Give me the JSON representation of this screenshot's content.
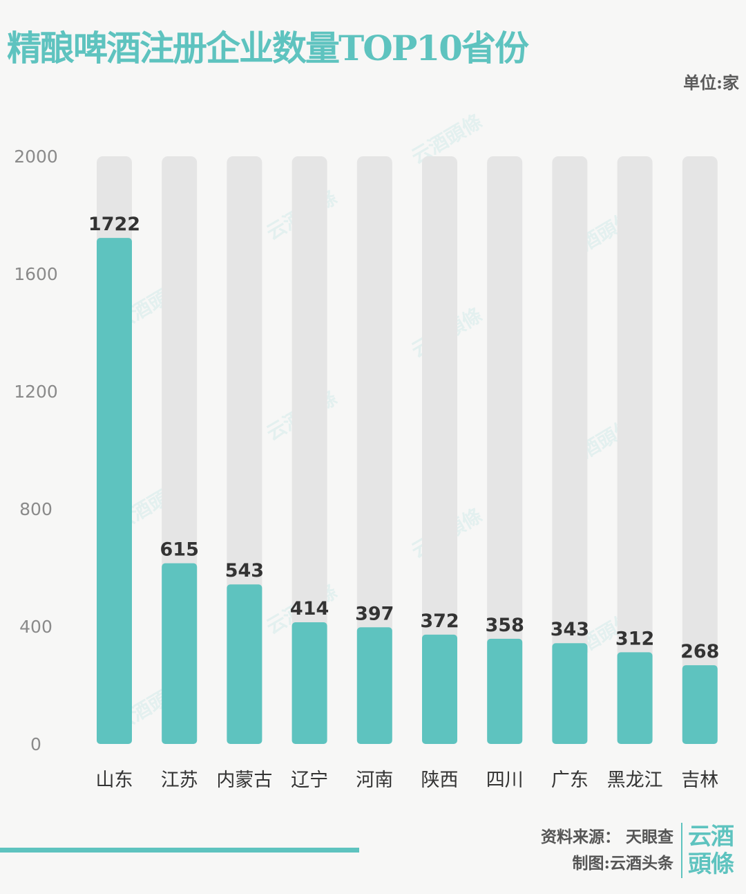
{
  "title": "精酿啤酒注册企业数量TOP10省份",
  "unit": "单位:家",
  "colors": {
    "accent": "#5ec3bf",
    "track": "#e5e5e5",
    "value_label": "#333333",
    "axis_label": "#8a8a8a"
  },
  "chart_data": {
    "type": "bar",
    "title": "精酿啤酒注册企业数量TOP10省份",
    "categories": [
      "山东",
      "江苏",
      "内蒙古",
      "辽宁",
      "河南",
      "陕西",
      "四川",
      "广东",
      "黑龙江",
      "吉林"
    ],
    "values": [
      1722,
      615,
      543,
      414,
      397,
      372,
      358,
      343,
      312,
      268
    ],
    "yticks": [
      "0",
      "400",
      "800",
      "1200",
      "1600",
      "2000"
    ],
    "ylim": [
      0,
      2000
    ],
    "xlabel": "",
    "ylabel": "",
    "grid": false,
    "legend": null
  },
  "footer": {
    "source": "资料来源： 天眼查",
    "maker": "制图:云酒头条",
    "brand_line1": "云酒",
    "brand_line2": "頭條"
  },
  "watermark": "云酒頭條"
}
